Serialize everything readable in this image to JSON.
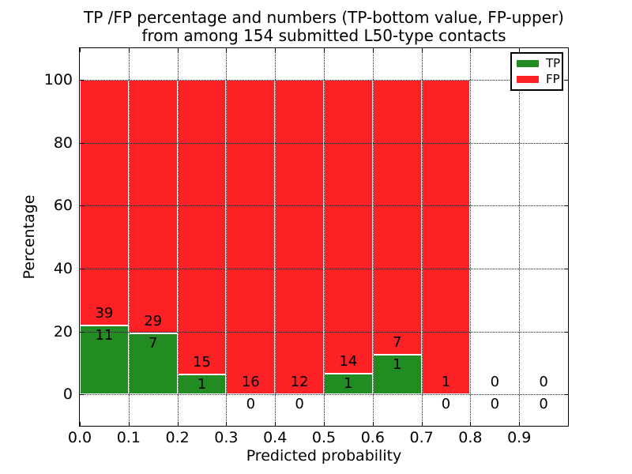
{
  "figure": {
    "title_line1": "TP /FP percentage and numbers (TP-bottom value, FP-upper)",
    "title_line2": "from among 154 submitted L50-type contacts"
  },
  "chart_data": {
    "type": "bar",
    "subtype": "stacked-percentage-histogram",
    "title": "TP /FP percentage and numbers (TP-bottom value, FP-upper)\nfrom among 154 submitted L50-type contacts",
    "xlabel": "Predicted probability",
    "ylabel": "Percentage",
    "xlim": [
      0.0,
      1.0
    ],
    "ylim": [
      -10,
      110
    ],
    "xticks": [
      "0.0",
      "0.1",
      "0.2",
      "0.3",
      "0.4",
      "0.5",
      "0.6",
      "0.7",
      "0.8",
      "0.9"
    ],
    "xtick_values": [
      0.0,
      0.1,
      0.2,
      0.3,
      0.4,
      0.5,
      0.6,
      0.7,
      0.8,
      0.9
    ],
    "yticks": [
      0,
      20,
      40,
      60,
      80,
      100
    ],
    "grid": "dotted",
    "legend_position": "upper right",
    "legend": [
      {
        "label": "TP",
        "series": "tp"
      },
      {
        "label": "FP",
        "series": "fp"
      }
    ],
    "colors": {
      "tp": "#228b22",
      "fp": "#fc2125",
      "bar_edge": "#ffffff",
      "text": "#000000"
    },
    "bar_normalized_height_pct": 100,
    "bin_width": 0.1,
    "bins": [
      {
        "x0": 0.0,
        "x1": 0.1,
        "tp": 11,
        "fp": 39
      },
      {
        "x0": 0.1,
        "x1": 0.2,
        "tp": 7,
        "fp": 29
      },
      {
        "x0": 0.2,
        "x1": 0.3,
        "tp": 1,
        "fp": 15
      },
      {
        "x0": 0.3,
        "x1": 0.4,
        "tp": 0,
        "fp": 16
      },
      {
        "x0": 0.4,
        "x1": 0.5,
        "tp": 0,
        "fp": 12
      },
      {
        "x0": 0.5,
        "x1": 0.6,
        "tp": 1,
        "fp": 14
      },
      {
        "x0": 0.6,
        "x1": 0.7,
        "tp": 1,
        "fp": 7
      },
      {
        "x0": 0.7,
        "x1": 0.8,
        "tp": 0,
        "fp": 1
      },
      {
        "x0": 0.8,
        "x1": 0.9,
        "tp": 0,
        "fp": 0
      },
      {
        "x0": 0.9,
        "x1": 1.0,
        "tp": 0,
        "fp": 0
      }
    ],
    "total_submitted_contacts": 154
  }
}
